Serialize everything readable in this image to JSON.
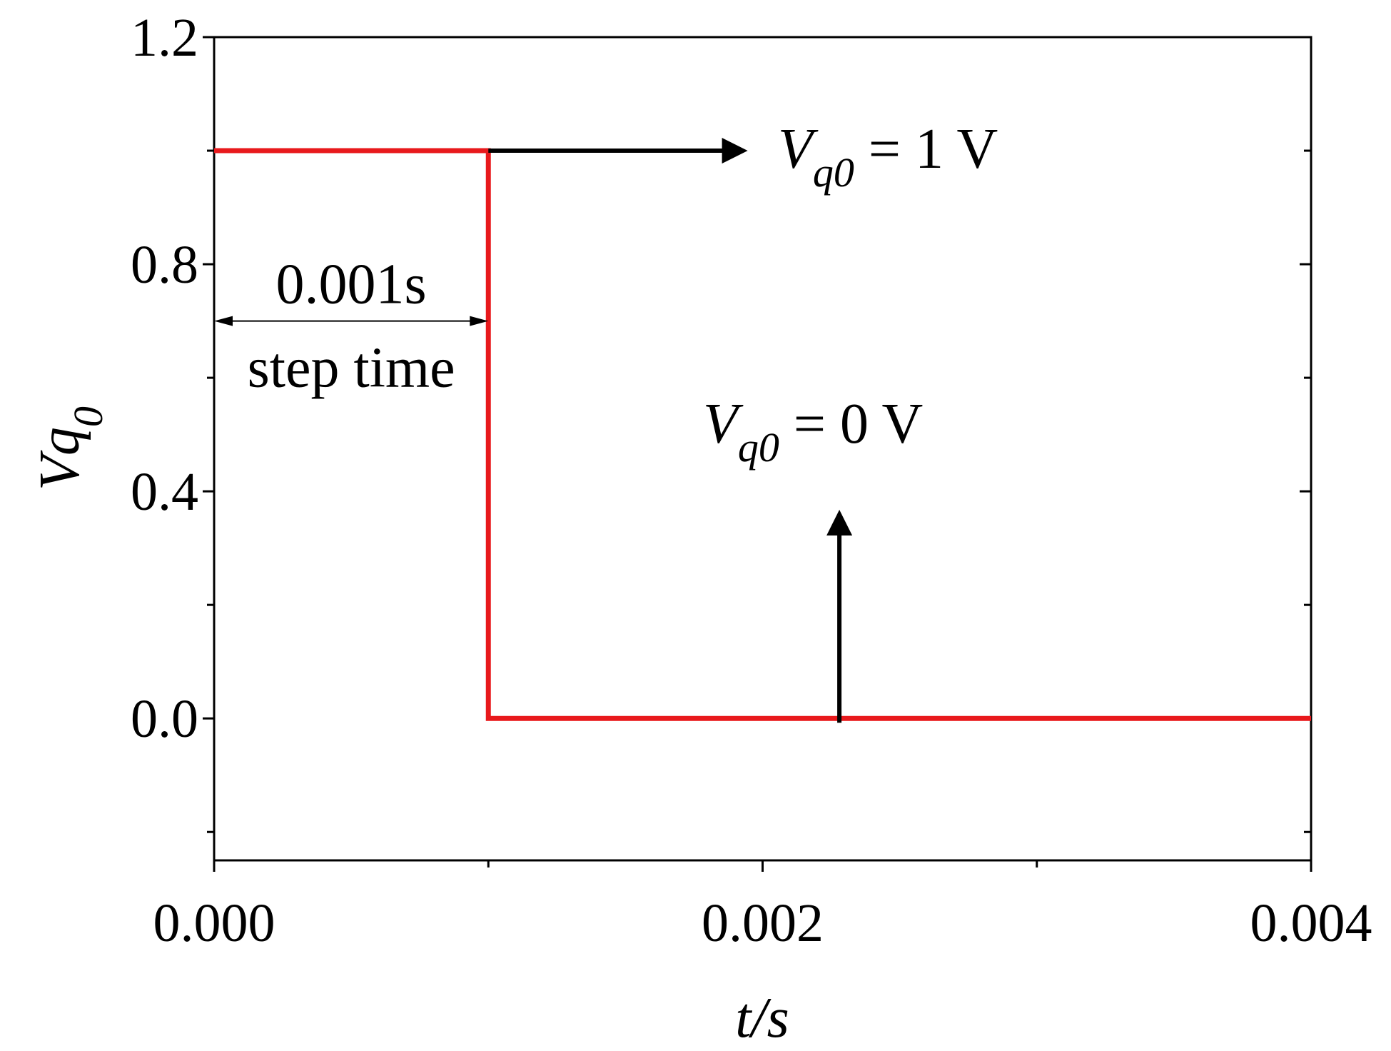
{
  "chart_data": {
    "type": "line",
    "xlabel": "t/s",
    "ylabel": {
      "main": "Vq",
      "sub": "0"
    },
    "xlim": [
      0,
      0.004
    ],
    "ylim": [
      -0.25,
      1.2
    ],
    "x_ticks": [
      0,
      0.001,
      0.002,
      0.003,
      0.004
    ],
    "x_tick_labels": [
      {
        "value": 0,
        "label": "0.000"
      },
      {
        "value": 0.002,
        "label": "0.002"
      },
      {
        "value": 0.004,
        "label": "0.004"
      }
    ],
    "y_ticks": [
      -0.2,
      0,
      0.2,
      0.4,
      0.6,
      0.8,
      1.0,
      1.2
    ],
    "y_tick_labels": [
      {
        "value": 0,
        "label": "0.0"
      },
      {
        "value": 0.4,
        "label": "0.4"
      },
      {
        "value": 0.8,
        "label": "0.8"
      },
      {
        "value": 1.2,
        "label": "1.2"
      }
    ],
    "grid": false,
    "series": [
      {
        "color": "#e8191c",
        "x": [
          0,
          0.001,
          0.001,
          0.004
        ],
        "y": [
          1,
          1,
          0,
          0
        ]
      }
    ],
    "annotations": {
      "step_duration": {
        "label": "0.001s",
        "sublabel": "step time",
        "from": [
          0,
          0.7
        ],
        "to": [
          0.001,
          0.7
        ]
      },
      "high_level": {
        "symbol": "V",
        "sub": "q0",
        "rest": " = 1 V",
        "arrow_from": [
          0.001,
          1.0
        ],
        "arrow_to": [
          0.00193,
          1.0
        ]
      },
      "low_level": {
        "symbol": "V",
        "sub": "q0",
        "rest": " = 0 V",
        "arrow_from": [
          0.00228,
          0.0
        ],
        "arrow_to": [
          0.00228,
          0.36
        ]
      }
    }
  }
}
